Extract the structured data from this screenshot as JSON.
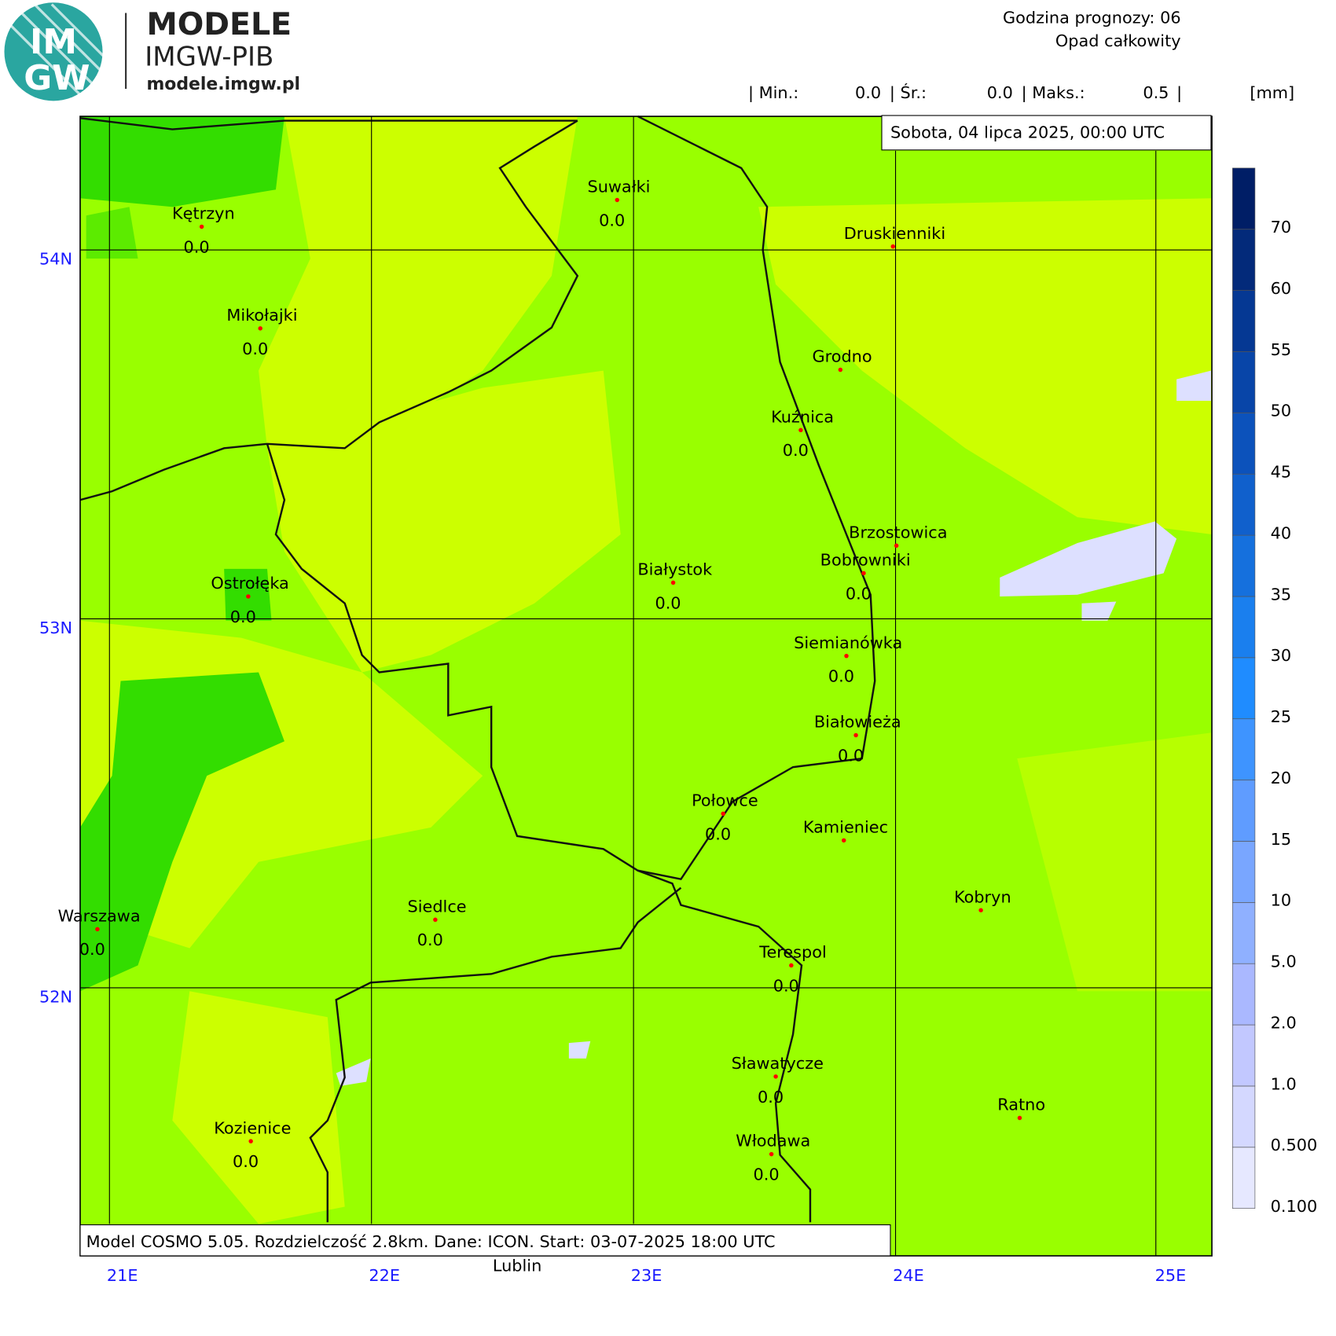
{
  "header": {
    "logo_top": "IM",
    "logo_bottom": "GW",
    "brand": "MODELE",
    "org": "IMGW-PIB",
    "site": "modele.imgw.pl",
    "forecast_hour": "Godzina prognozy: 06",
    "field": "Opad całkowity",
    "stats": {
      "min_label": "| Min.:",
      "min": "0.0",
      "mean_label": "| Śr.:",
      "mean": "0.0",
      "max_label": "| Maks.:",
      "max": "0.5",
      "end": "|",
      "unit": "[mm]"
    }
  },
  "map": {
    "date": "Sobota, 04 lipca 2025, 00:00 UTC",
    "footer": "Model COSMO 5.05. Rozdzielczość 2.8km. Dane: ICON. Start: 03-07-2025 18:00 UTC",
    "outside_label": "Lublin",
    "lat_labels": [
      "54N",
      "53N",
      "52N"
    ],
    "lon_labels": [
      "21E",
      "22E",
      "23E",
      "24E",
      "25E"
    ],
    "cities": [
      {
        "name": "Kętrzyn",
        "value": "0.0"
      },
      {
        "name": "Suwałki",
        "value": "0.0"
      },
      {
        "name": "Druskienniki"
      },
      {
        "name": "Mikołajki",
        "value": "0.0"
      },
      {
        "name": "Grodno"
      },
      {
        "name": "Kuźnica",
        "value": "0.0"
      },
      {
        "name": "Brzostowica"
      },
      {
        "name": "Bobrowniki",
        "value": "0.0"
      },
      {
        "name": "Białystok",
        "value": "0.0"
      },
      {
        "name": "Ostrołęka",
        "value": "0.0"
      },
      {
        "name": "Siemianówka",
        "value": "0.0"
      },
      {
        "name": "Białowieża",
        "value": "0.0"
      },
      {
        "name": "Połowce",
        "value": "0.0"
      },
      {
        "name": "Kamieniec"
      },
      {
        "name": "Kobryn"
      },
      {
        "name": "Siedlce",
        "value": "0.0"
      },
      {
        "name": "Warszawa",
        "value": "0.0"
      },
      {
        "name": "Terespol",
        "value": "0.0"
      },
      {
        "name": "Sławatycze",
        "value": "0.0"
      },
      {
        "name": "Ratno"
      },
      {
        "name": "Kozienice",
        "value": "0.0"
      },
      {
        "name": "Włodawa",
        "value": "0.0"
      }
    ]
  },
  "colorbar": {
    "labels": [
      "0.100",
      "0.500",
      "1.0",
      "2.0",
      "5.0",
      "10",
      "15",
      "20",
      "25",
      "30",
      "35",
      "40",
      "45",
      "50",
      "55",
      "60",
      "70"
    ]
  }
}
